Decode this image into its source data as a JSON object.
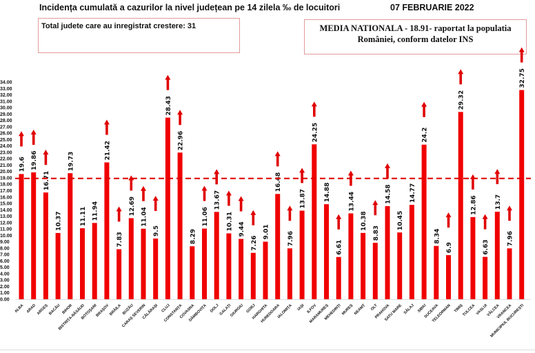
{
  "header": {
    "title": "Incidența cumulată a cazurilor la nivel județean pe 14 zilela ‰ de locuitori",
    "date": "07 FEBRUARIE 2022"
  },
  "info_box": {
    "text": "Total judete care au inregistrat crestere: 31"
  },
  "national_box": {
    "line1": "MEDIA NATIONALA - 18.91-  raportat la populatia",
    "line2": "României, conform datelor INS"
  },
  "colors": {
    "bar": "#f00000",
    "arrow": "#e00000",
    "average_line": "#e00000"
  },
  "chart_data": {
    "type": "bar",
    "title": "Incidența cumulată a cazurilor la nivel județean pe 14 zilela ‰ de locuitori",
    "xlabel": "",
    "ylabel": "",
    "ylim": [
      0,
      34
    ],
    "ytick_step": 1,
    "grid": false,
    "average": 18.91,
    "categories": [
      "ALBA",
      "ARAD",
      "ARGEȘ",
      "BACĂU",
      "BIHOR",
      "BISTRIȚA-NĂSĂUD",
      "BOTOȘANI",
      "BRAȘOV",
      "BRĂILA",
      "BUZĂU",
      "CARAȘ SEVERIN",
      "CĂLĂRAȘI",
      "CLUJ",
      "CONSTANȚA",
      "COVASNA",
      "DÂMBOVIȚA",
      "DOLJ",
      "GALAȚI",
      "GIURGIU",
      "GORJ",
      "HARGHITA",
      "HUNEDOARA",
      "IALOMIȚA",
      "IAȘI",
      "ILFOV",
      "MARAMUREȘ",
      "MEHEDINȚI",
      "MUREȘ",
      "NEAMȚ",
      "OLT",
      "PRAHOVA",
      "SATU MARE",
      "SĂLAJ",
      "SIBIU",
      "SUCEAVA",
      "TELEORMAN",
      "TIMIȘ",
      "TULCEA",
      "VASLUI",
      "VÂLCEA",
      "VRANCEA",
      "MUNICIPIUL BUCUREȘTI"
    ],
    "values": [
      19.6,
      19.86,
      16.71,
      10.37,
      19.73,
      11.11,
      11.94,
      21.42,
      7.83,
      12.69,
      11.04,
      9.5,
      28.43,
      22.96,
      8.29,
      11.06,
      13.67,
      10.31,
      9.44,
      7.26,
      9.01,
      16.48,
      7.96,
      13.87,
      24.25,
      14.88,
      6.61,
      13.44,
      10.38,
      8.83,
      14.58,
      10.45,
      14.77,
      24.2,
      8.34,
      6.9,
      29.32,
      12.86,
      6.63,
      13.7,
      7.96,
      32.75
    ],
    "labels": [
      "19.6",
      "19.86",
      "16.71",
      "10.37",
      "19.73",
      "11.11",
      "11.94",
      "21.42",
      "7.83",
      "12.69",
      "11.04",
      "9.5",
      "28.43",
      "22.96",
      "8.29",
      "11.06",
      "13.67",
      "10.31",
      "9.44",
      "7.26",
      "9.01",
      "16.48",
      "7.96",
      "13.87",
      "24.25",
      "14.88",
      "6.61",
      "13.44",
      "10.38",
      "8.83",
      "14.58",
      "10.45",
      "14.77",
      "24.2",
      "8.34",
      "6.9",
      "29.32",
      "12.86",
      "6.63",
      "13.7",
      "7.96",
      "32.75"
    ],
    "increase": [
      true,
      true,
      true,
      false,
      false,
      false,
      false,
      true,
      true,
      true,
      true,
      true,
      true,
      true,
      false,
      true,
      true,
      true,
      true,
      true,
      false,
      true,
      true,
      true,
      true,
      false,
      true,
      true,
      false,
      true,
      true,
      false,
      false,
      true,
      false,
      true,
      true,
      true,
      true,
      true,
      true,
      true
    ]
  }
}
